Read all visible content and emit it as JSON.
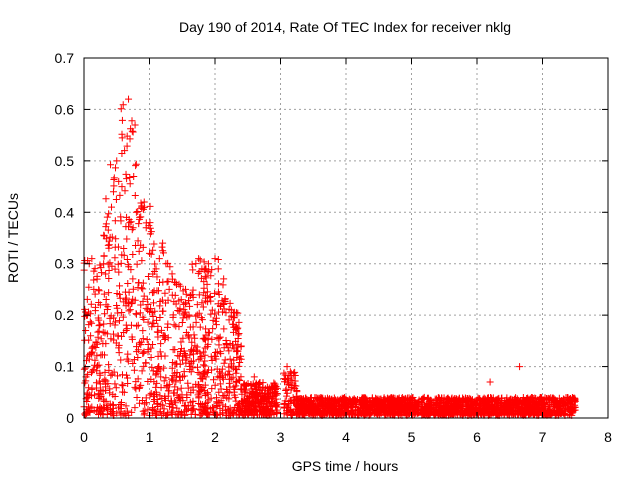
{
  "chart_data": {
    "type": "scatter",
    "title": "Day 190 of 2014, Rate Of TEC Index for receiver nklg",
    "xlabel": "GPS time / hours",
    "ylabel": "ROTI / TECUs",
    "xlim": [
      0,
      8
    ],
    "ylim": [
      0,
      0.7
    ],
    "xticks": [
      "0",
      "1",
      "2",
      "3",
      "4",
      "5",
      "6",
      "7",
      "8"
    ],
    "yticks": [
      "0",
      "0.1",
      "0.2",
      "0.3",
      "0.4",
      "0.5",
      "0.6",
      "0.7"
    ],
    "grid": true,
    "marker": "+",
    "color": "#ff0000",
    "series": [
      {
        "name": "ROTI",
        "points": [
          [
            0.05,
            0.2
          ],
          [
            0.08,
            0.3
          ],
          [
            0.12,
            0.31
          ],
          [
            0.15,
            0.25
          ],
          [
            0.2,
            0.27
          ],
          [
            0.25,
            0.22
          ],
          [
            0.3,
            0.3
          ],
          [
            0.33,
            0.28
          ],
          [
            0.38,
            0.33
          ],
          [
            0.42,
            0.41
          ],
          [
            0.45,
            0.44
          ],
          [
            0.5,
            0.5
          ],
          [
            0.53,
            0.46
          ],
          [
            0.58,
            0.45
          ],
          [
            0.62,
            0.52
          ],
          [
            0.65,
            0.39
          ],
          [
            0.68,
            0.62
          ],
          [
            0.7,
            0.38
          ],
          [
            0.75,
            0.37
          ],
          [
            0.8,
            0.4
          ],
          [
            0.85,
            0.39
          ],
          [
            0.88,
            0.41
          ],
          [
            0.92,
            0.42
          ],
          [
            0.95,
            0.37
          ],
          [
            1.0,
            0.32
          ],
          [
            1.05,
            0.28
          ],
          [
            1.1,
            0.29
          ],
          [
            1.15,
            0.31
          ],
          [
            1.2,
            0.34
          ],
          [
            1.25,
            0.3
          ],
          [
            1.3,
            0.25
          ],
          [
            1.35,
            0.27
          ],
          [
            1.45,
            0.26
          ],
          [
            1.55,
            0.25
          ],
          [
            1.65,
            0.24
          ],
          [
            1.75,
            0.31
          ],
          [
            1.8,
            0.29
          ],
          [
            1.9,
            0.3
          ],
          [
            2.0,
            0.31
          ],
          [
            2.05,
            0.29
          ],
          [
            2.15,
            0.23
          ],
          [
            2.25,
            0.21
          ],
          [
            2.4,
            0.14
          ],
          [
            2.6,
            0.08
          ],
          [
            2.8,
            0.06
          ],
          [
            3.1,
            0.1
          ],
          [
            3.15,
            0.09
          ],
          [
            4.5,
            0.01
          ],
          [
            6.2,
            0.07
          ],
          [
            6.65,
            0.1
          ]
        ]
      }
    ]
  }
}
